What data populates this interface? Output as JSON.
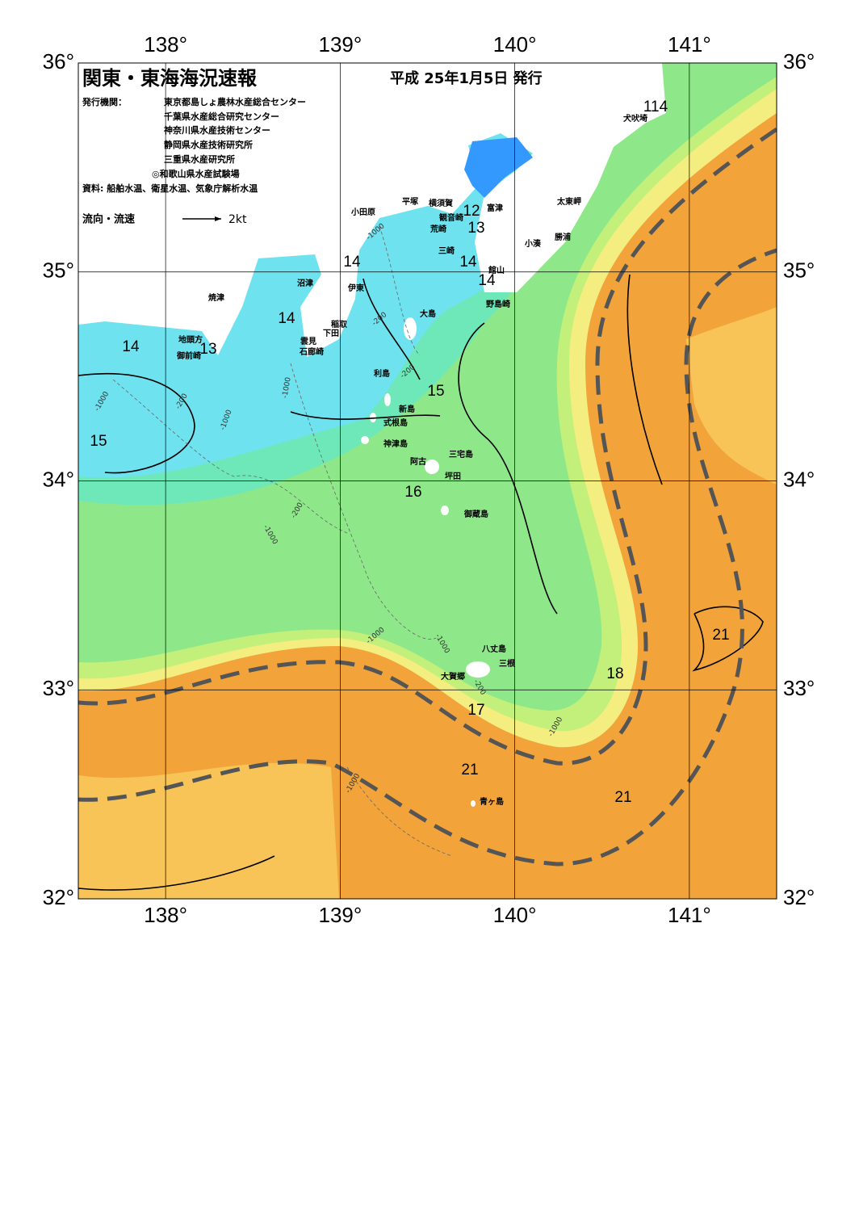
{
  "header": {
    "title": "関東・東海海況速報",
    "date": "平成 25年1月5日 発行",
    "issuer_label": "発行機関：",
    "issuers": [
      "東京都島しょ農林水産総合センター",
      "千葉県水産総合研究センター",
      "神奈川県水産技術センター",
      "静岡県水産技術研究所",
      "三重県水産研究所",
      "◎和歌山県水産試験場"
    ],
    "source": "資料: 船舶水温、衛星水温、気象庁解析水温",
    "legend_label": "流向・流速",
    "legend_scale": "2kt"
  },
  "map": {
    "lon_range": [
      137.5,
      141.5
    ],
    "lat_range": [
      32,
      36
    ],
    "lon_ticks": [
      {
        "value": 138,
        "label": "138°"
      },
      {
        "value": 139,
        "label": "139°"
      },
      {
        "value": 140,
        "label": "140°"
      },
      {
        "value": 141,
        "label": "141°"
      }
    ],
    "lat_ticks": [
      {
        "value": 32,
        "label": "32°"
      },
      {
        "value": 33,
        "label": "33°"
      },
      {
        "value": 34,
        "label": "34°"
      },
      {
        "value": 35,
        "label": "35°"
      },
      {
        "value": 36,
        "label": "36°"
      }
    ],
    "isotherm_labels": [
      "114",
      "12",
      "13",
      "14",
      "14",
      "14",
      "14",
      "14",
      "13",
      "15",
      "15",
      "16",
      "18",
      "21",
      "17",
      "21",
      "21"
    ],
    "place_names": [
      "犬吠埼",
      "太東岬",
      "勝浦",
      "小湊",
      "館山",
      "野島崎",
      "富津",
      "横須賀",
      "観音崎",
      "荒崎",
      "三崎",
      "平塚",
      "小田原",
      "沼津",
      "伊東",
      "稲取",
      "下田",
      "雲見",
      "石廊崎",
      "焼津",
      "地頭方",
      "御前崎",
      "大島",
      "利島",
      "新島",
      "式根島",
      "神津島",
      "三宅島",
      "阿古",
      "坪田",
      "御蔵島",
      "八丈島",
      "三根",
      "大賀郷",
      "青ヶ島"
    ],
    "depth_labels": [
      "-1000",
      "-200",
      "-1000",
      "-1000",
      "-200",
      "-1000",
      "-200",
      "-1000",
      "-1000",
      "-200",
      "-1000",
      "-1000",
      "-200",
      "-1000"
    ]
  }
}
